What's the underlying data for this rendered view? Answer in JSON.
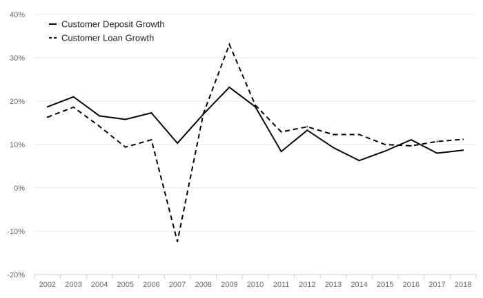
{
  "chart_data": {
    "type": "line",
    "title": "",
    "xlabel": "",
    "ylabel": "",
    "categories": [
      "2002",
      "2003",
      "2004",
      "2005",
      "2006",
      "2007",
      "2008",
      "2009",
      "2010",
      "2011",
      "2012",
      "2013",
      "2014",
      "2015",
      "2016",
      "2017",
      "2018"
    ],
    "ylim": [
      -20,
      40
    ],
    "yticks": [
      -20,
      -10,
      0,
      10,
      20,
      30,
      40
    ],
    "ytick_labels": [
      "-20%",
      "-10%",
      "0%",
      "10%",
      "20%",
      "30%",
      "40%"
    ],
    "grid": "horizontal",
    "legend_position": "top-left",
    "series": [
      {
        "name": "Customer Deposit Growth",
        "line_style": "solid",
        "color": "#000000",
        "values": [
          18.7,
          21.0,
          16.6,
          15.8,
          17.3,
          10.3,
          17.0,
          23.2,
          18.7,
          8.4,
          13.3,
          9.3,
          6.3,
          8.5,
          11.1,
          8.0,
          8.7
        ]
      },
      {
        "name": "Customer Loan Growth",
        "line_style": "dashed",
        "color": "#000000",
        "values": [
          16.3,
          18.6,
          14.2,
          9.4,
          11.1,
          -12.4,
          17.1,
          33.1,
          19.1,
          12.9,
          14.1,
          12.3,
          12.3,
          10.0,
          9.7,
          10.7,
          11.2
        ]
      }
    ]
  }
}
